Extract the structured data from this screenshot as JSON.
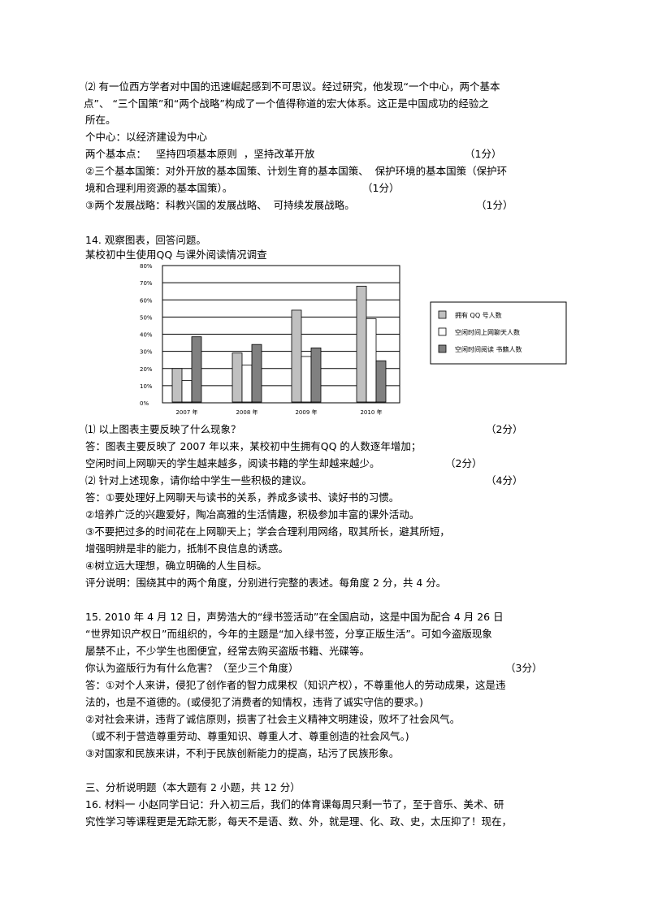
{
  "section13": {
    "q": "⑵ 有一位西方学者对中国的迅速崛起感到不可思议。经过研究，他发现“一个中心，两个基本",
    "q2": "点”、 “三个国策”和“两个战略”构成了一个值得称道的宏大体系。这正是中国成功的经验之",
    "q3": "所在。",
    "a1": "个中心：以经济建设为中心",
    "a2": "两个基本点：   坚持四项基本原则  ，坚持改革开放",
    "a2_score": "（1分）",
    "a3": "②三个基本国策：对外开放的基本国策、计划生育的基本国策、  保护环境的基本国策（保护环",
    "a4": "境和合理利用资源的基本国策）。",
    "a4_score": "（1分）",
    "a5": "③两个发展战略：科教兴国的发展战略、  可持续发展战略。",
    "a5_score": "（1分）"
  },
  "section14": {
    "q": "14. 观察图表，回答问题。",
    "chart_title": "某校初中生使用QQ 与课外阅读情况调查",
    "q1": "⑴ 以上图表主要反映了什么现象？",
    "q1_score": "（2分）",
    "a1": "答：图表主要反映了 2007 年以来，某校初中生拥有QQ 的人数逐年增加；",
    "a1b": "空闲时间上网聊天的学生越来越多，阅读书籍的学生却越来越少。",
    "a1b_score": "（2分）",
    "q2": "⑵ 针对上述现象，请你给中学生一些积极的建议。",
    "q2_score": "（4分）",
    "a2": "答：①要处理好上网聊天与读书的关系，养成多读书、读好书的习惯。",
    "a3": "②培养广泛的兴趣爱好，陶冶高雅的生活情趣，积极参加丰富的课外活动。",
    "a4": "③不要把过多的时间花在上网聊天上；学会合理利用网络，取其所长，避其所短，",
    "a5": "增强明辨是非的能力，抵制不良信息的诱惑。",
    "a6": "④树立远大理想，确立明确的人生目标。",
    "a7": "评分说明：围绕其中的两个角度，分别进行完整的表述。每角度 2 分，共 4 分。"
  },
  "chart_data": {
    "type": "bar",
    "categories": [
      "2007 年",
      "2008 年",
      "2009 年",
      "2010 年"
    ],
    "series": [
      {
        "name": "拥有 QQ 号人数",
        "values": [
          20,
          29,
          54,
          68
        ],
        "color": "#c0c0c0"
      },
      {
        "name": "空闲时间上网聊天人数",
        "values": [
          13,
          22,
          27,
          49
        ],
        "color": "#ffffff"
      },
      {
        "name": "空闲时间阅读 书籍人数",
        "values": [
          38.5,
          34,
          32,
          24.5
        ],
        "color": "#808080"
      }
    ],
    "yticks": [
      "0%",
      "10%",
      "20%",
      "30%",
      "40%",
      "50%",
      "60%",
      "70%",
      "80%"
    ],
    "ylim": [
      0,
      80
    ],
    "grid": true,
    "legend": "right"
  },
  "section15": {
    "q": "15. 2010 年 4 月 12 日，声势浩大的“绿书签活动”在全国启动，这是中国为配合 4 月 26 日",
    "q2": "“世界知识产权日”而组织的，今年的主题是“加入绿书签，分享正版生活”。可如今盗版现象",
    "q3": "屡禁不止，不少学生也图便宜，经常去购买盗版书籍、光碟等。",
    "q4": "你认为盗版行为有什么危害？（至少三个角度）",
    "q4_score": "（3分）",
    "a1": "答：①对个人来讲，侵犯了创作者的智力成果权（知识产权），不尊重他人的劳动成果，这是违",
    "a2": "法的，也是不道德的。(或侵犯了消费者的知情权，违背了诚实守信的要求。)",
    "a3": "②对社会来讲，违背了诚信原则，损害了社会主义精神文明建设，败坏了社会风气。",
    "a4": "（或不利于营造尊重劳动、尊重知识、尊重人才、尊重创造的社会风气。)",
    "a5": "③对国家和民族来讲，不利于民族创新能力的提高，玷污了民族形象。"
  },
  "section3": {
    "h": "三、分析说明题（本大题有 2 小题，共 12 分）",
    "q16": "16. 材料一 小赵同学日记：升入初三后，我们的体育课每周只剩一节了，至于音乐、美术、研",
    "q16b": "究性学习等课程更是无踪无影，每天不是语、数、外，就是理、化、政、史，太压抑了！现在，"
  }
}
